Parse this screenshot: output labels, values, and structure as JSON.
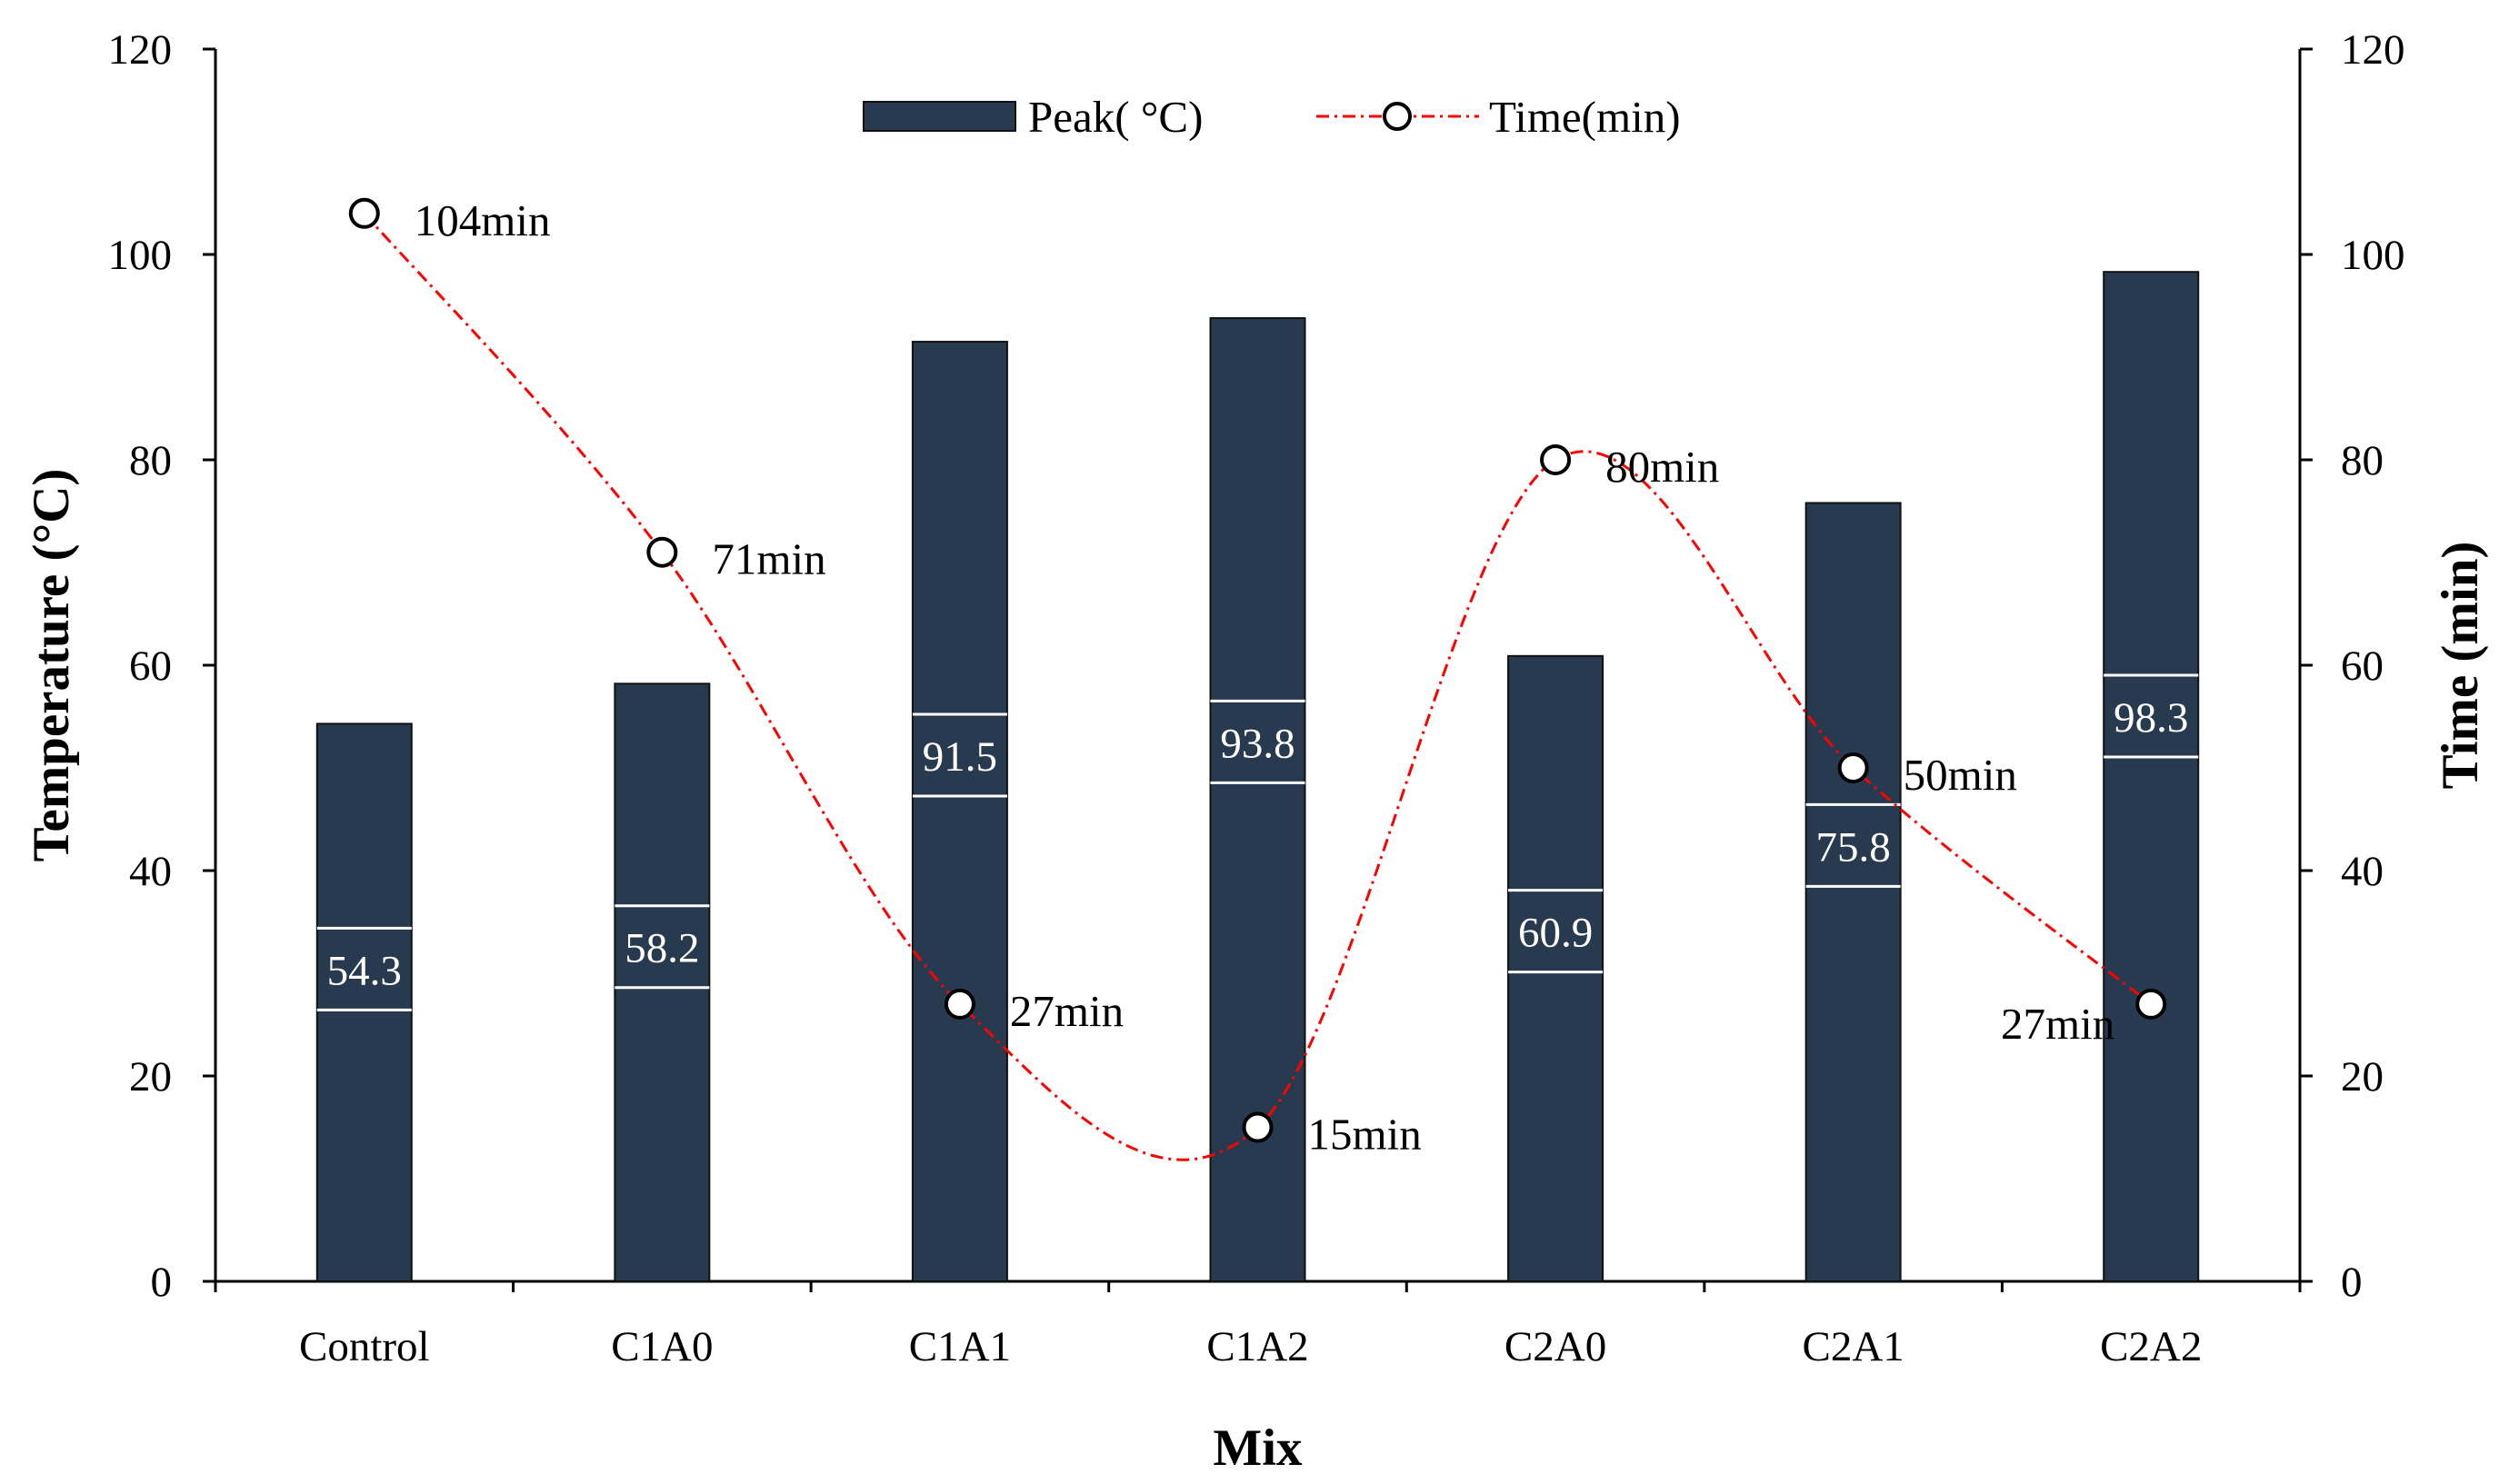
{
  "chart_data": {
    "type": "bar+line",
    "title": "",
    "xlabel": "Mix",
    "ylabel_left": "Temperature (°C)",
    "ylabel_right": "Time (min)",
    "ylim_left": [
      0,
      120
    ],
    "ylim_right": [
      0,
      120
    ],
    "yticks_left": [
      "0",
      "20",
      "40",
      "60",
      "80",
      "100",
      "120"
    ],
    "yticks_right": [
      "0",
      "20",
      "40",
      "60",
      "80",
      "100",
      "120"
    ],
    "categories": [
      "Control",
      "C1A0",
      "C1A1",
      "C1A2",
      "C2A0",
      "C2A1",
      "C2A2"
    ],
    "series": [
      {
        "name": "Peak( °C)",
        "type": "bar",
        "axis": "left",
        "color": "#283a4f",
        "values": [
          54.3,
          58.2,
          91.5,
          93.8,
          60.9,
          75.8,
          98.3
        ],
        "labels": [
          "54.3",
          "58.2",
          "91.5",
          "93.8",
          "60.9",
          "75.8",
          "98.3"
        ]
      },
      {
        "name": "Time(min)",
        "type": "line",
        "axis": "right",
        "color": "#ff0000",
        "line_style": "dash-dot",
        "marker": "open-circle",
        "smooth": true,
        "values": [
          104,
          71,
          27,
          15,
          80,
          50,
          27
        ],
        "labels": [
          "104min",
          "71min",
          "27min",
          "15min",
          "80min",
          "50min",
          "27min"
        ]
      }
    ],
    "legend": {
      "position": "top-center",
      "entries": [
        "Peak( °C)",
        "Time(min)"
      ]
    },
    "grid": false
  }
}
